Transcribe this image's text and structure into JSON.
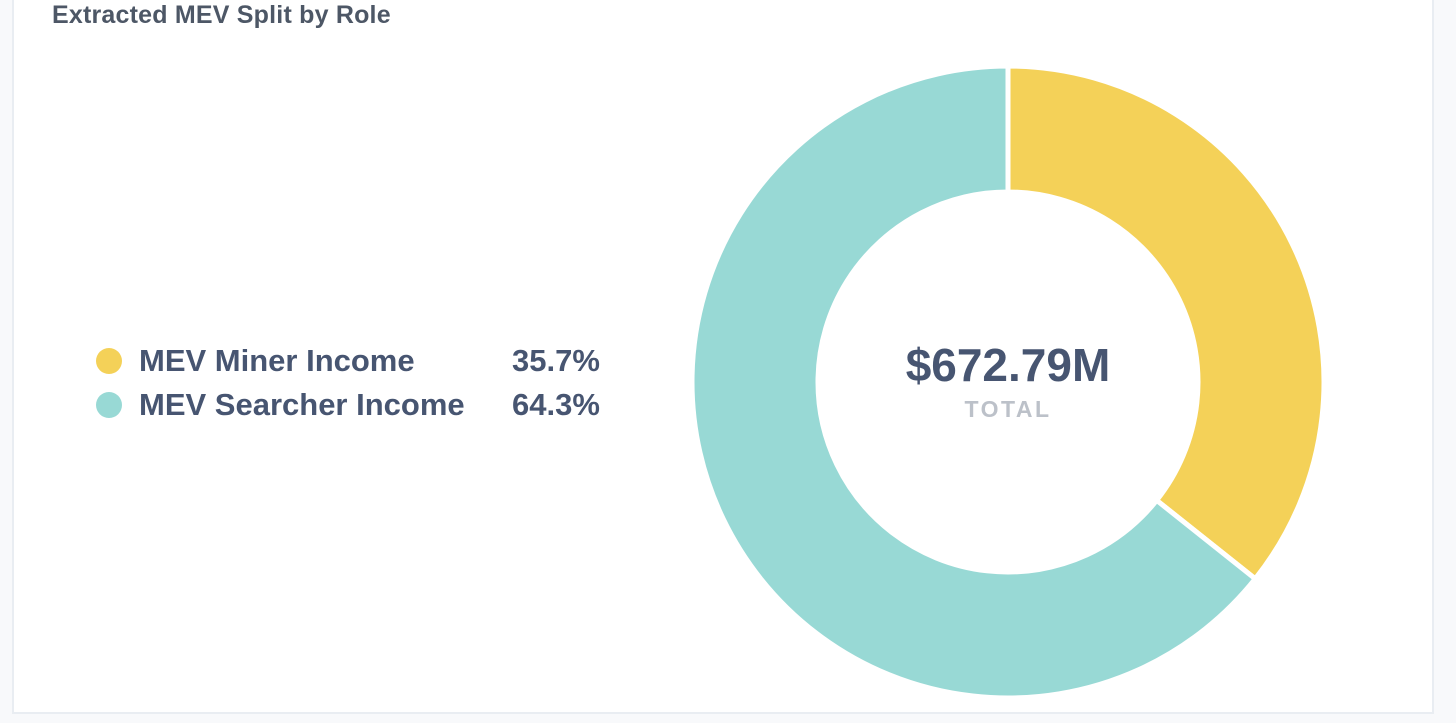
{
  "page": {
    "background_color": "#f8f9fb",
    "card_background_color": "#ffffff",
    "card_border_color": "#e9edf2"
  },
  "header": {
    "title": "Extracted MEV Split by Role",
    "title_color": "#4d5766"
  },
  "legend": {
    "text_color": "#475571",
    "items": [
      {
        "label": "MEV Miner Income",
        "value": "35.7%",
        "color": "#f4d158"
      },
      {
        "label": "MEV Searcher Income",
        "value": "64.3%",
        "color": "#98d9d5"
      }
    ]
  },
  "donut_center": {
    "total_value": "$672.79M",
    "total_label": "TOTAL",
    "value_color": "#475571",
    "label_color": "#bcc1c9"
  },
  "chart_data": {
    "type": "pie",
    "title": "Extracted MEV Split by Role",
    "categories": [
      "MEV Miner Income",
      "MEV Searcher Income"
    ],
    "values": [
      35.7,
      64.3
    ],
    "unit": "%",
    "colors": [
      "#f4d158",
      "#98d9d5"
    ],
    "donut": true,
    "inner_radius_ratio": 0.6,
    "start_angle_deg": -90,
    "clockwise": true,
    "slice_gap_stroke": "#ffffff",
    "slice_gap_width": 5,
    "center_total": "$672.79M",
    "center_label": "TOTAL",
    "legend_position": "left"
  }
}
